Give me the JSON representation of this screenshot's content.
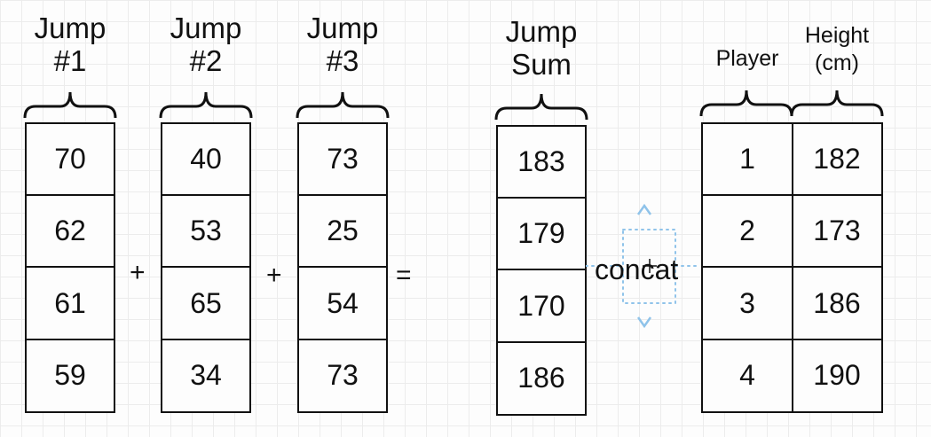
{
  "columns": [
    {
      "id": "jump1",
      "header": [
        "Jump",
        "#1"
      ],
      "values": [
        "70",
        "62",
        "61",
        "59"
      ]
    },
    {
      "id": "jump2",
      "header": [
        "Jump",
        "#2"
      ],
      "values": [
        "40",
        "53",
        "65",
        "34"
      ]
    },
    {
      "id": "jump3",
      "header": [
        "Jump",
        "#3"
      ],
      "values": [
        "73",
        "25",
        "54",
        "73"
      ]
    },
    {
      "id": "jumpsum",
      "header": [
        "Jump",
        "Sum"
      ],
      "values": [
        "183",
        "179",
        "170",
        "186"
      ]
    },
    {
      "id": "player",
      "header": [
        "Player"
      ],
      "values": [
        "1",
        "2",
        "3",
        "4"
      ]
    },
    {
      "id": "height",
      "header": [
        "Height",
        "(cm)"
      ],
      "values": [
        "182",
        "173",
        "186",
        "190"
      ]
    }
  ],
  "operators": {
    "plus1": "+",
    "plus2": "+",
    "equals": "="
  },
  "concat_label": "concat",
  "colors": {
    "handle": "#8fc3ea",
    "line": "#111111"
  }
}
